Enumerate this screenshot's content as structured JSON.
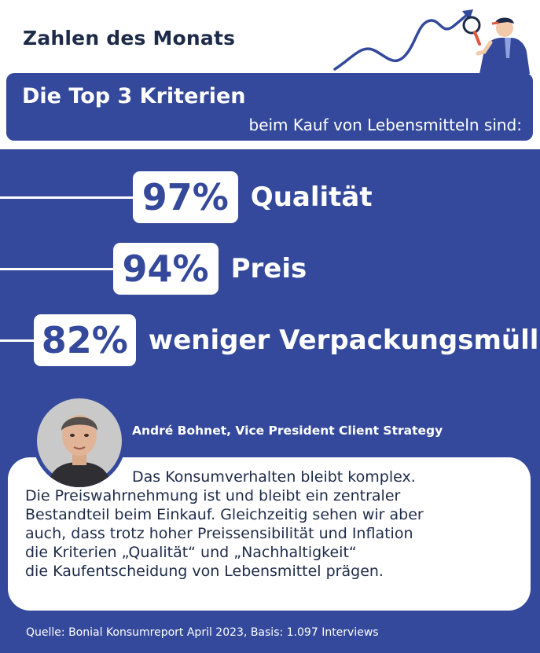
{
  "header": {
    "title": "Zahlen des Monats",
    "box_line1": "Die Top 3 Kriterien",
    "box_line2": "beim Kauf von Lebensmitteln sind:"
  },
  "chart_data": {
    "type": "bar",
    "categories": [
      "Qualität",
      "Preis",
      "weniger Verpackungsmüll"
    ],
    "values": [
      97,
      94,
      82
    ],
    "value_labels": [
      "97%",
      "94%",
      "82%"
    ],
    "unit": "%"
  },
  "quote": {
    "author": "André Bohnet, Vice President Client Strategy",
    "lines": [
      "Das Konsumverhalten bleibt komplex.",
      "Die Preiswahrnehmung ist und bleibt ein zentraler",
      "Bestandteil beim Einkauf. Gleichzeitig sehen wir aber",
      "auch, dass trotz hoher Preissensibilität und Inflation",
      "die Kriterien „Qualität“ und „Nachhaltigkeit“",
      "die Kaufentscheidung von Lebensmittel prägen."
    ]
  },
  "source": "Quelle: Bonial Konsumreport April 2023, Basis: 1.097 Interviews",
  "icons": {
    "decoration": "rising-trend-arrow-and-person-with-magnifier-illustration",
    "portrait": "author-portrait-photo"
  },
  "colors": {
    "brand_blue": "#34499b",
    "dark_text": "#1d2b49",
    "white": "#ffffff",
    "accent_orange": "#e4573d"
  }
}
